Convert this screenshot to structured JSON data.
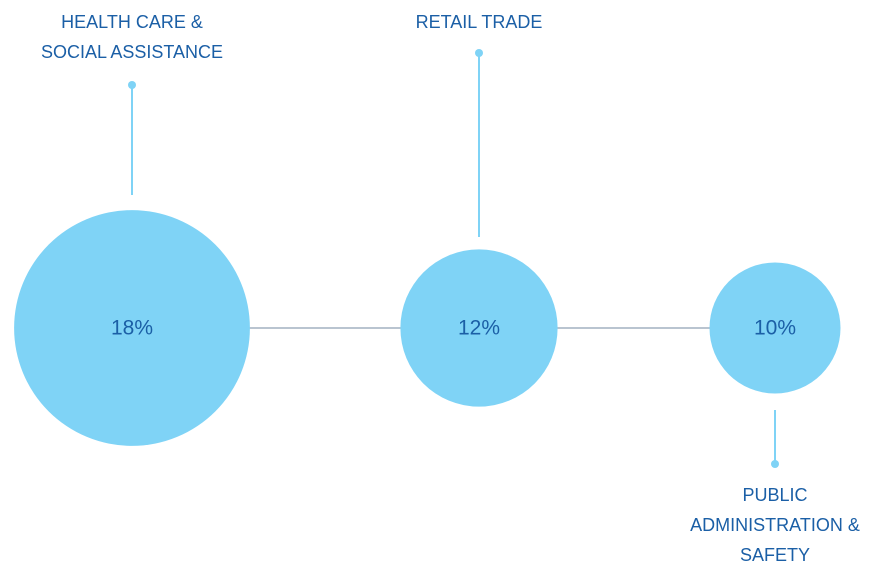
{
  "chart_data": {
    "type": "bubble",
    "categories": [
      "HEALTH CARE &\nSOCIAL ASSISTANCE",
      "RETAIL TRADE",
      "PUBLIC\nADMINISTRATION &\nSAFETY"
    ],
    "values": [
      18,
      12,
      10
    ],
    "value_labels": [
      "18%",
      "12%",
      "10%"
    ],
    "color": "#7fd3f6"
  }
}
